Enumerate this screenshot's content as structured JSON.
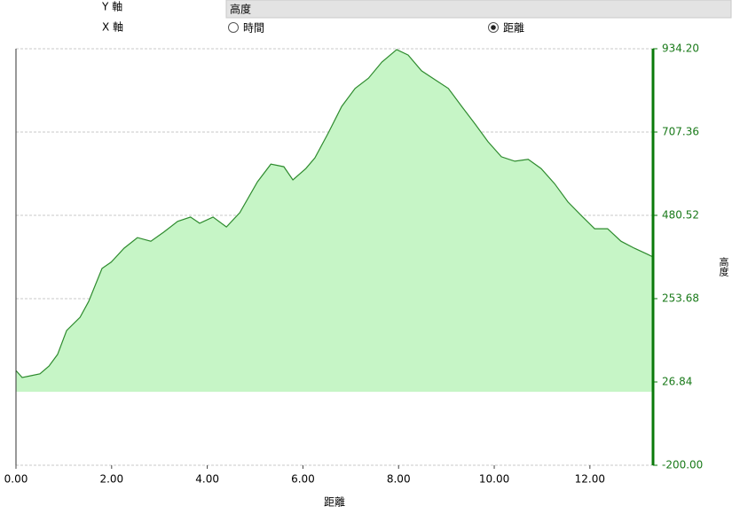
{
  "controls": {
    "y_axis_label": "Y 軸",
    "y_select": "高度",
    "x_axis_label": "X 軸",
    "x_options": [
      "時間",
      "距離"
    ]
  },
  "chart_data": {
    "type": "area",
    "xlabel": "距離",
    "ylabel": "高度",
    "x": [
      0,
      0.13,
      0.32,
      0.5,
      0.69,
      0.87,
      1.06,
      1.34,
      1.52,
      1.8,
      1.99,
      2.26,
      2.54,
      2.82,
      3.09,
      3.38,
      3.65,
      3.84,
      4.12,
      4.4,
      4.68,
      5.05,
      5.33,
      5.6,
      5.79,
      6.06,
      6.25,
      6.53,
      6.81,
      7.09,
      7.37,
      7.65,
      7.96,
      8.2,
      8.48,
      8.76,
      9.04,
      9.32,
      9.6,
      9.87,
      10.15,
      10.43,
      10.71,
      10.98,
      11.26,
      11.54,
      11.82,
      12.1,
      12.37,
      12.65,
      12.93,
      13.21,
      13.32
    ],
    "values": [
      58,
      39,
      44,
      49,
      70,
      102,
      167,
      203,
      246,
      336,
      353,
      391,
      420,
      410,
      435,
      464,
      476,
      459,
      476,
      449,
      488,
      572,
      620,
      613,
      577,
      608,
      637,
      705,
      777,
      826,
      854,
      898,
      932,
      917,
      874,
      850,
      826,
      777,
      729,
      681,
      640,
      628,
      633,
      608,
      567,
      517,
      480,
      444,
      444,
      410,
      391,
      374,
      367
    ],
    "color": "#2e8b2e",
    "fill": "#c6f5c6",
    "axis_color": "#0a7a0a",
    "xlim": [
      0,
      13.32
    ],
    "ylim": [
      -200,
      934.2
    ],
    "xticks": [
      {
        "value": 0,
        "label": "0.00"
      },
      {
        "value": 2,
        "label": "2.00"
      },
      {
        "value": 4,
        "label": "4.00"
      },
      {
        "value": 6,
        "label": "6.00"
      },
      {
        "value": 8,
        "label": "8.00"
      },
      {
        "value": 10,
        "label": "10.00"
      },
      {
        "value": 12,
        "label": "12.00"
      }
    ],
    "yticks": [
      {
        "value": -200,
        "label": "-200.00"
      },
      26.84,
      253.68,
      480.52,
      707.36,
      {
        "value": 934.2,
        "label": "934.20"
      }
    ],
    "grid": true
  }
}
